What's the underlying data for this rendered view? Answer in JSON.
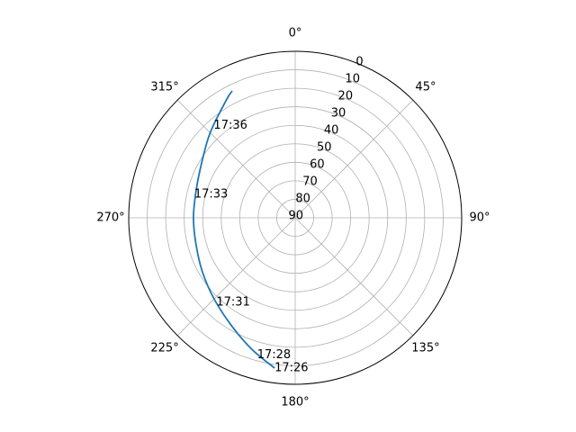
{
  "chart_data": {
    "type": "line",
    "projection": "polar",
    "theta_zero_location": "N",
    "theta_direction": "clockwise",
    "r_axis": "elevation (inverted: 90 at center, 0 at edge)",
    "rlim": [
      90,
      0
    ],
    "grid": true,
    "angle_tick_labels": [
      {
        "deg": 0,
        "label": "0°"
      },
      {
        "deg": 45,
        "label": "45°"
      },
      {
        "deg": 90,
        "label": "90°"
      },
      {
        "deg": 135,
        "label": "135°"
      },
      {
        "deg": 180,
        "label": "180°"
      },
      {
        "deg": 225,
        "label": "225°"
      },
      {
        "deg": 270,
        "label": "270°"
      },
      {
        "deg": 315,
        "label": "315°"
      }
    ],
    "radial_tick_labels": [
      "0",
      "10",
      "20",
      "30",
      "40",
      "50",
      "60",
      "70",
      "80",
      "90"
    ],
    "series": [
      {
        "color": "#1f77b4",
        "points": [
          {
            "az": 187.8,
            "el": 8.0
          },
          {
            "az": 198.0,
            "el": 15.0
          },
          {
            "az": 210.0,
            "el": 22.0
          },
          {
            "az": 225.0,
            "el": 28.0
          },
          {
            "az": 240.0,
            "el": 32.0
          },
          {
            "az": 255.0,
            "el": 34.5
          },
          {
            "az": 270.0,
            "el": 35.0
          },
          {
            "az": 285.0,
            "el": 34.5
          },
          {
            "az": 300.0,
            "el": 31.5
          },
          {
            "az": 315.0,
            "el": 25.0
          },
          {
            "az": 330.0,
            "el": 16.0
          },
          {
            "az": 333.6,
            "el": 13.5
          }
        ]
      }
    ],
    "annotations": [
      {
        "text": "17:26",
        "az": 187.8,
        "el": 8.0
      },
      {
        "text": "17:28",
        "az": 195.5,
        "el": 13.0
      },
      {
        "text": "17:31",
        "az": 223.0,
        "el": 27.5
      },
      {
        "text": "17:33",
        "az": 283.0,
        "el": 34.0
      },
      {
        "text": "17:36",
        "az": 318.5,
        "el": 23.5
      }
    ]
  }
}
